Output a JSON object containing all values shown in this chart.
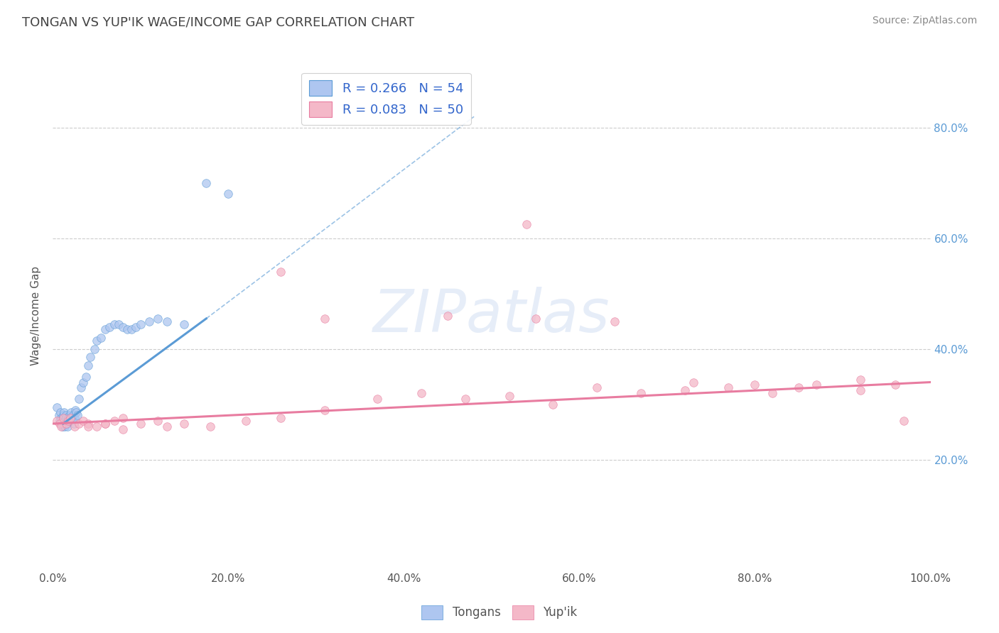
{
  "title": "TONGAN VS YUP'IK WAGE/INCOME GAP CORRELATION CHART",
  "source_text": "Source: ZipAtlas.com",
  "ylabel": "Wage/Income Gap",
  "xlim": [
    0.0,
    1.0
  ],
  "ylim": [
    0.0,
    0.92
  ],
  "x_tick_labels": [
    "0.0%",
    "20.0%",
    "40.0%",
    "60.0%",
    "80.0%",
    "100.0%"
  ],
  "x_tick_positions": [
    0.0,
    0.2,
    0.4,
    0.6,
    0.8,
    1.0
  ],
  "y_tick_labels": [
    "20.0%",
    "40.0%",
    "60.0%",
    "80.0%"
  ],
  "y_tick_positions": [
    0.2,
    0.4,
    0.6,
    0.8
  ],
  "legend_entries": [
    {
      "label": "R = 0.266   N = 54"
    },
    {
      "label": "R = 0.083   N = 50"
    }
  ],
  "legend_bottom_labels": [
    "Tongans",
    "Yup'ik"
  ],
  "watermark_text": "ZIPatlas",
  "background_color": "#ffffff",
  "grid_color": "#cccccc",
  "title_color": "#444444",
  "title_fontsize": 13,
  "tongans_x": [
    0.005,
    0.007,
    0.008,
    0.009,
    0.01,
    0.01,
    0.011,
    0.011,
    0.012,
    0.012,
    0.013,
    0.013,
    0.014,
    0.014,
    0.015,
    0.015,
    0.016,
    0.016,
    0.017,
    0.018,
    0.019,
    0.02,
    0.021,
    0.022,
    0.023,
    0.024,
    0.025,
    0.026,
    0.027,
    0.028,
    0.03,
    0.032,
    0.035,
    0.038,
    0.04,
    0.043,
    0.048,
    0.05,
    0.055,
    0.06,
    0.065,
    0.07,
    0.075,
    0.08,
    0.085,
    0.09,
    0.095,
    0.1,
    0.11,
    0.12,
    0.13,
    0.15,
    0.175,
    0.2
  ],
  "tongans_y": [
    0.295,
    0.28,
    0.27,
    0.285,
    0.265,
    0.275,
    0.27,
    0.26,
    0.275,
    0.28,
    0.265,
    0.285,
    0.27,
    0.26,
    0.28,
    0.275,
    0.265,
    0.27,
    0.26,
    0.275,
    0.28,
    0.27,
    0.285,
    0.275,
    0.28,
    0.265,
    0.275,
    0.29,
    0.285,
    0.28,
    0.31,
    0.33,
    0.34,
    0.35,
    0.37,
    0.385,
    0.4,
    0.415,
    0.42,
    0.435,
    0.44,
    0.445,
    0.445,
    0.44,
    0.435,
    0.435,
    0.44,
    0.445,
    0.45,
    0.455,
    0.45,
    0.445,
    0.7,
    0.68
  ],
  "yupik_x": [
    0.005,
    0.008,
    0.01,
    0.012,
    0.015,
    0.018,
    0.02,
    0.025,
    0.03,
    0.035,
    0.04,
    0.05,
    0.06,
    0.07,
    0.08,
    0.1,
    0.12,
    0.15,
    0.18,
    0.22,
    0.26,
    0.31,
    0.37,
    0.42,
    0.47,
    0.52,
    0.57,
    0.62,
    0.67,
    0.72,
    0.77,
    0.82,
    0.87,
    0.92,
    0.97,
    0.31,
    0.45,
    0.55,
    0.64,
    0.73,
    0.8,
    0.85,
    0.92,
    0.96,
    0.54,
    0.26,
    0.13,
    0.08,
    0.06,
    0.04
  ],
  "yupik_y": [
    0.27,
    0.265,
    0.26,
    0.275,
    0.265,
    0.27,
    0.275,
    0.26,
    0.265,
    0.27,
    0.265,
    0.26,
    0.265,
    0.27,
    0.275,
    0.265,
    0.27,
    0.265,
    0.26,
    0.27,
    0.275,
    0.29,
    0.31,
    0.32,
    0.31,
    0.315,
    0.3,
    0.33,
    0.32,
    0.325,
    0.33,
    0.32,
    0.335,
    0.325,
    0.27,
    0.455,
    0.46,
    0.455,
    0.45,
    0.34,
    0.335,
    0.33,
    0.345,
    0.335,
    0.625,
    0.54,
    0.26,
    0.255,
    0.265,
    0.26
  ],
  "tongan_line_x": [
    0.012,
    0.175
  ],
  "tongan_line_y": [
    0.265,
    0.455
  ],
  "tongan_dashed_line_x": [
    0.175,
    0.48
  ],
  "tongan_dashed_line_y": [
    0.455,
    0.82
  ],
  "yupik_line_x": [
    0.0,
    1.0
  ],
  "yupik_line_y": [
    0.265,
    0.34
  ],
  "tongan_line_color": "#5b9bd5",
  "yupik_line_color": "#e87ca0",
  "tongan_fill_color": "#aec6f0",
  "tongan_edge_color": "#5b9bd5",
  "yupik_fill_color": "#f4b8c8",
  "yupik_edge_color": "#e87ca0",
  "scatter_size": 70,
  "scatter_alpha": 0.75,
  "line_width": 2.2
}
